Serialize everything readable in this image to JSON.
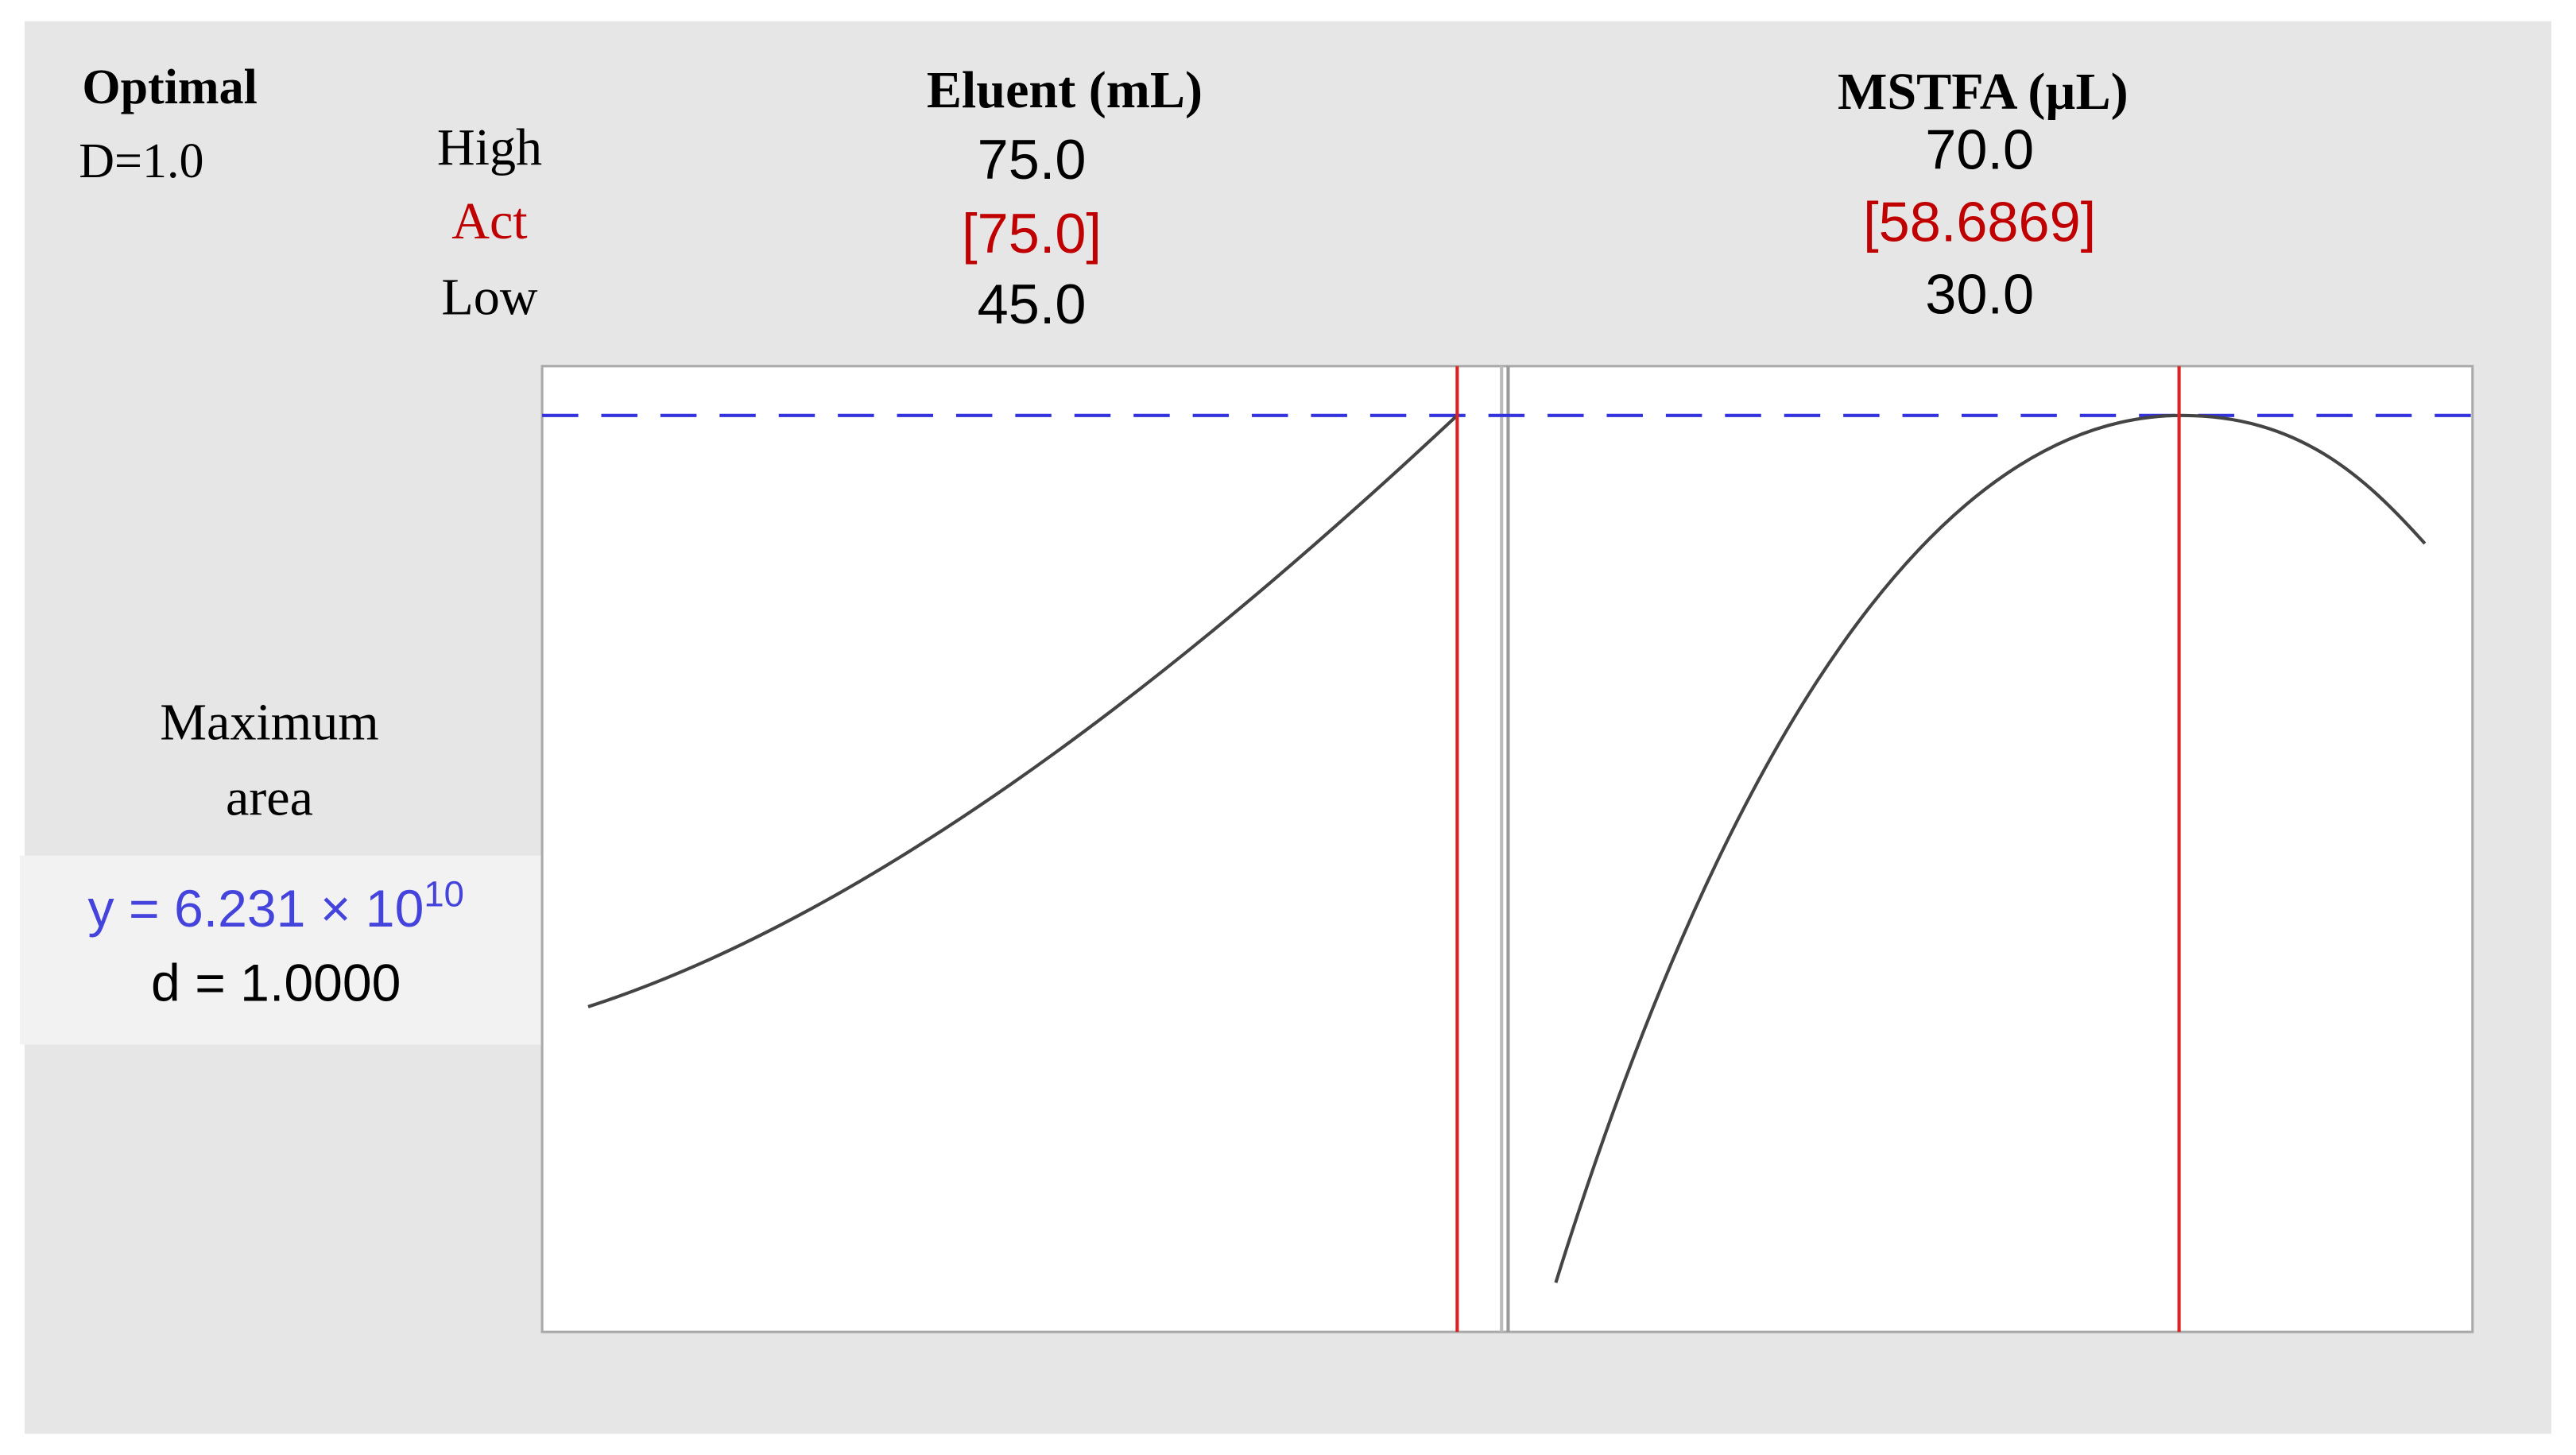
{
  "optimal": {
    "title": "Optimal",
    "d_label": "D=1.0"
  },
  "row_labels": {
    "high": "High",
    "act": "Act",
    "low": "Low"
  },
  "factors": [
    {
      "name": "Eluent (mL)",
      "high": {
        "value": 75,
        "label": "75.0"
      },
      "act": {
        "value": 75,
        "label": "[75.0]"
      },
      "low": {
        "value": 45,
        "label": "45.0"
      }
    },
    {
      "name": "MSTFA (µL)",
      "high": {
        "value": 70,
        "label": "70.0"
      },
      "act": {
        "value": 58.6869,
        "label": "[58.6869]"
      },
      "low": {
        "value": 30,
        "label": "30.0"
      }
    }
  ],
  "response": {
    "goal_lines": [
      "Maximum",
      "area"
    ],
    "y_text": "y = 6.231 × 10",
    "y_exponent": "10",
    "d_text": "d = 1.0000"
  }
}
